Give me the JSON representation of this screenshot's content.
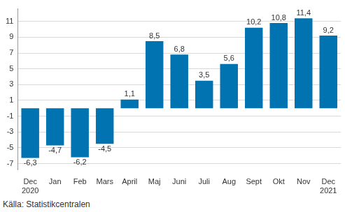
{
  "chart_data": {
    "type": "bar",
    "categories": [
      "Dec\n2020",
      "Jan",
      "Feb",
      "Mars",
      "April",
      "Maj",
      "Juni",
      "Juli",
      "Aug",
      "Sept",
      "Okt",
      "Nov",
      "Dec\n2021"
    ],
    "values": [
      -6.3,
      -4.7,
      -6.2,
      -4.5,
      1.1,
      8.5,
      6.8,
      3.5,
      5.6,
      10.2,
      10.8,
      11.4,
      9.2
    ],
    "value_labels": [
      "-6,3",
      "-4,7",
      "-6,2",
      "-4,5",
      "1,1",
      "8,5",
      "6,8",
      "3,5",
      "5,6",
      "10,2",
      "10,8",
      "11,4",
      "9,2"
    ],
    "data_labels": true,
    "color": "#0073b0",
    "ylim": [
      -7.8,
      12.6
    ],
    "yticks": [
      -7,
      -5,
      -3,
      -1,
      1,
      3,
      5,
      7,
      9,
      11
    ],
    "grid": true,
    "source": "Källa: Statistikcentralen"
  }
}
